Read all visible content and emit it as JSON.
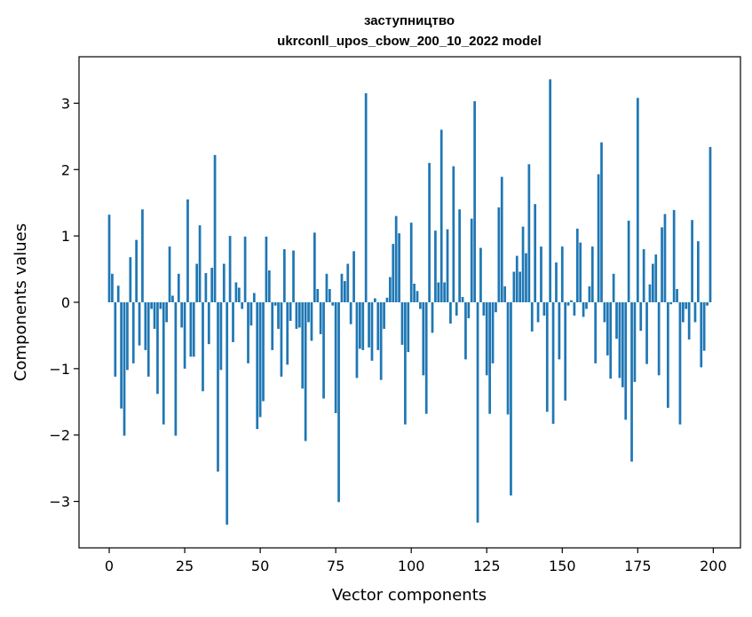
{
  "chart_data": {
    "type": "bar",
    "title": [
      "заступництво",
      "ukrconll_upos_cbow_200_10_2022 model"
    ],
    "xlabel": "Vector components",
    "ylabel": "Components values",
    "xlim": [
      -10,
      209
    ],
    "ylim": [
      -3.7,
      3.7
    ],
    "xticks": [
      0,
      25,
      50,
      75,
      100,
      125,
      150,
      175,
      200
    ],
    "yticks": [
      -3,
      -2,
      -1,
      0,
      1,
      2,
      3
    ],
    "ytick_labels": [
      "−3",
      "−2",
      "−1",
      "0",
      "1",
      "2",
      "3"
    ],
    "color": "#1f77b4",
    "x": [
      0,
      1,
      2,
      3,
      4,
      5,
      6,
      7,
      8,
      9,
      10,
      11,
      12,
      13,
      14,
      15,
      16,
      17,
      18,
      19,
      20,
      21,
      22,
      23,
      24,
      25,
      26,
      27,
      28,
      29,
      30,
      31,
      32,
      33,
      34,
      35,
      36,
      37,
      38,
      39,
      40,
      41,
      42,
      43,
      44,
      45,
      46,
      47,
      48,
      49,
      50,
      51,
      52,
      53,
      54,
      55,
      56,
      57,
      58,
      59,
      60,
      61,
      62,
      63,
      64,
      65,
      66,
      67,
      68,
      69,
      70,
      71,
      72,
      73,
      74,
      75,
      76,
      77,
      78,
      79,
      80,
      81,
      82,
      83,
      84,
      85,
      86,
      87,
      88,
      89,
      90,
      91,
      92,
      93,
      94,
      95,
      96,
      97,
      98,
      99,
      100,
      101,
      102,
      103,
      104,
      105,
      106,
      107,
      108,
      109,
      110,
      111,
      112,
      113,
      114,
      115,
      116,
      117,
      118,
      119,
      120,
      121,
      122,
      123,
      124,
      125,
      126,
      127,
      128,
      129,
      130,
      131,
      132,
      133,
      134,
      135,
      136,
      137,
      138,
      139,
      140,
      141,
      142,
      143,
      144,
      145,
      146,
      147,
      148,
      149,
      150,
      151,
      152,
      153,
      154,
      155,
      156,
      157,
      158,
      159,
      160,
      161,
      162,
      163,
      164,
      165,
      166,
      167,
      168,
      169,
      170,
      171,
      172,
      173,
      174,
      175,
      176,
      177,
      178,
      179,
      180,
      181,
      182,
      183,
      184,
      185,
      186,
      187,
      188,
      189,
      190,
      191,
      192,
      193,
      194,
      195,
      196,
      197,
      198,
      199
    ],
    "values": [
      1.32,
      0.43,
      -1.12,
      0.25,
      -1.6,
      -2.01,
      -1.02,
      0.68,
      -0.92,
      0.94,
      -0.65,
      1.4,
      -0.72,
      -1.12,
      -0.1,
      -0.4,
      -1.38,
      -0.1,
      -1.84,
      -0.3,
      0.84,
      0.1,
      -2.01,
      0.43,
      -0.38,
      -1.0,
      1.55,
      -0.82,
      -0.82,
      0.58,
      1.16,
      -1.34,
      0.44,
      -0.63,
      0.52,
      2.22,
      -2.55,
      -1.02,
      0.58,
      -3.35,
      1.0,
      -0.6,
      0.3,
      0.22,
      -0.1,
      0.99,
      -0.92,
      -0.35,
      0.14,
      -1.91,
      -1.73,
      -1.49,
      0.99,
      0.48,
      -0.72,
      -0.05,
      -0.4,
      -1.12,
      0.8,
      -0.94,
      -0.28,
      0.78,
      -0.4,
      -0.38,
      -1.3,
      -2.09,
      -0.3,
      -0.58,
      1.05,
      0.2,
      -0.48,
      -1.45,
      0.43,
      0.2,
      -0.05,
      -1.67,
      -3.01,
      0.43,
      0.32,
      0.58,
      -0.33,
      0.77,
      -1.14,
      -0.7,
      -0.72,
      3.15,
      -0.68,
      -0.88,
      0.06,
      -0.72,
      -1.17,
      -0.4,
      0.07,
      0.38,
      0.88,
      1.3,
      1.04,
      -0.64,
      -1.84,
      -0.75,
      1.2,
      0.28,
      0.17,
      -0.1,
      -1.1,
      -1.68,
      2.1,
      -0.46,
      1.08,
      0.3,
      2.6,
      0.3,
      1.1,
      -0.32,
      2.05,
      -0.2,
      1.4,
      0.08,
      -0.86,
      -0.24,
      1.26,
      3.03,
      -3.32,
      0.82,
      -0.2,
      -1.1,
      -1.68,
      -0.92,
      -0.15,
      1.43,
      1.89,
      0.24,
      -1.69,
      -2.91,
      0.46,
      0.7,
      0.46,
      1.14,
      0.74,
      2.08,
      -0.44,
      1.48,
      -0.3,
      0.84,
      -0.2,
      -1.65,
      3.36,
      -1.83,
      0.6,
      -0.86,
      0.84,
      -1.48,
      -0.05,
      0.03,
      -0.2,
      1.11,
      0.9,
      -0.22,
      -0.1,
      0.24,
      0.84,
      -0.92,
      1.93,
      2.41,
      -0.3,
      -0.8,
      -1.15,
      0.43,
      -0.55,
      -1.14,
      -1.28,
      -1.77,
      1.23,
      -2.4,
      -1.2,
      3.08,
      -0.43,
      0.8,
      -0.93,
      0.27,
      0.58,
      0.72,
      -1.1,
      1.13,
      1.33,
      -1.59,
      -0.03,
      1.39,
      0.2,
      -1.84,
      -0.3,
      -0.1,
      -0.56,
      1.24,
      -0.3,
      0.92,
      -0.98,
      -0.73,
      -0.05,
      2.34
    ]
  }
}
